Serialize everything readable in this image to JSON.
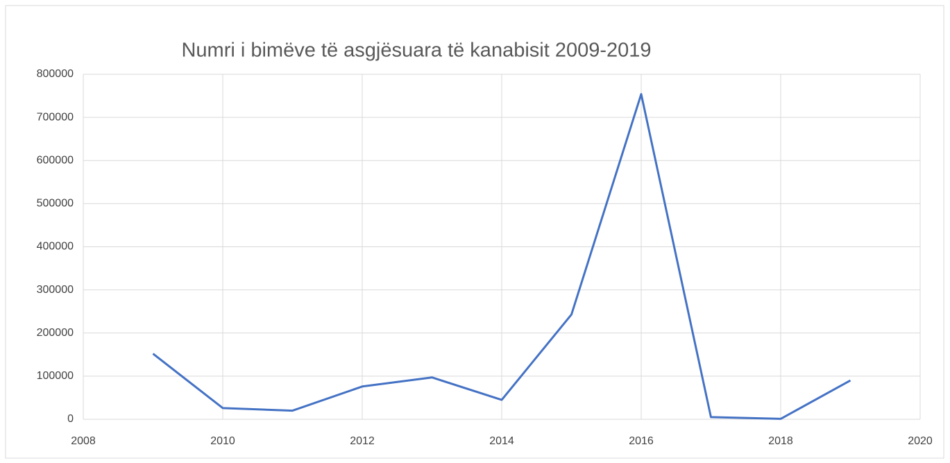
{
  "chart_data": {
    "type": "line",
    "title": "Numri i bimëve të asgjësuara të kanabisit 2009-2019",
    "x": [
      2009,
      2010,
      2011,
      2012,
      2013,
      2014,
      2015,
      2016,
      2017,
      2018,
      2019
    ],
    "series": [
      {
        "name": "Numri i bimëve",
        "color": "#4472c4",
        "values": [
          152000,
          26000,
          20000,
          76000,
          97000,
          45000,
          243000,
          754000,
          5000,
          1000,
          90000
        ]
      }
    ],
    "xlim": [
      2008,
      2020
    ],
    "xticks": [
      2008,
      2010,
      2012,
      2014,
      2016,
      2018,
      2020
    ],
    "ylim": [
      0,
      800000
    ],
    "yticks": [
      0,
      100000,
      200000,
      300000,
      400000,
      500000,
      600000,
      700000,
      800000
    ],
    "grid": true
  }
}
